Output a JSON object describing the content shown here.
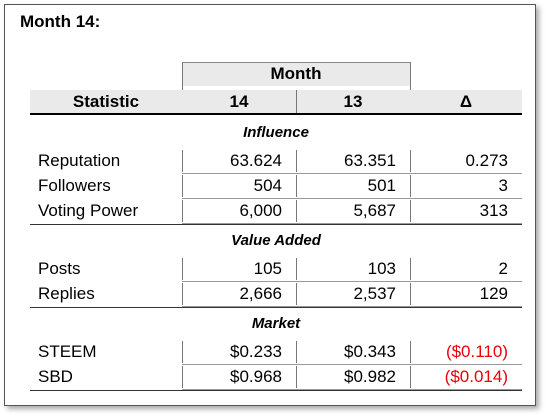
{
  "title": "Month 14:",
  "table": {
    "group_header": "Month",
    "columns": [
      "Statistic",
      "14",
      "13",
      "Δ"
    ],
    "sections": [
      {
        "name": "Influence",
        "rows": [
          [
            "Reputation",
            "63.624",
            "63.351",
            "0.273"
          ],
          [
            "Followers",
            "504",
            "501",
            "3"
          ],
          [
            "Voting Power",
            "6,000",
            "5,687",
            "313"
          ]
        ]
      },
      {
        "name": "Value Added",
        "rows": [
          [
            "Posts",
            "105",
            "103",
            "2"
          ],
          [
            "Replies",
            "2,666",
            "2,537",
            "129"
          ]
        ]
      },
      {
        "name": "Market",
        "rows": [
          [
            "STEEM",
            "$0.233",
            "$0.343",
            "($0.110)"
          ],
          [
            "SBD",
            "$0.968",
            "$0.982",
            "($0.014)"
          ]
        ]
      }
    ]
  }
}
